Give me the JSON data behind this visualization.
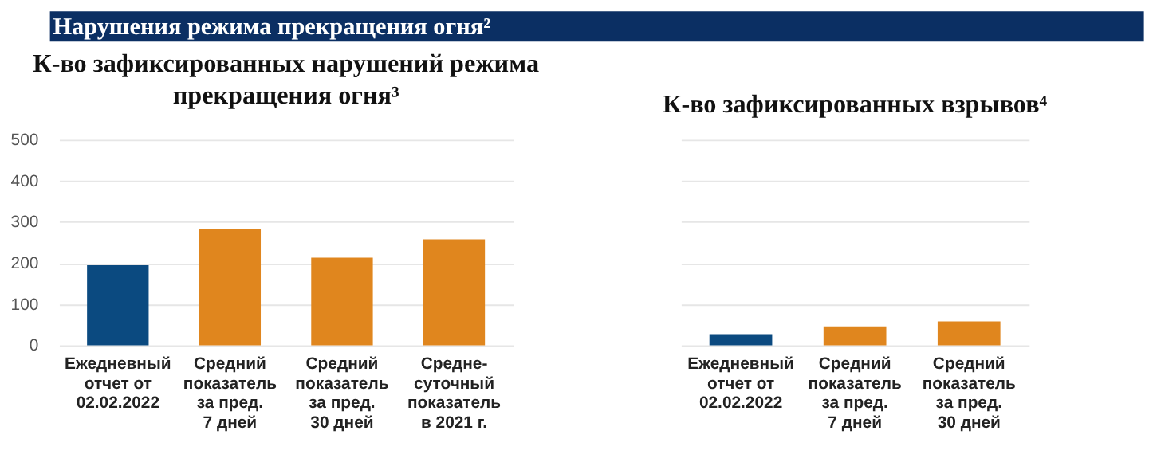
{
  "chart_data": [
    {
      "type": "bar",
      "title": "Нарушения режима прекращения огня²",
      "subtitle": "К-во зафиксированных нарушений режима\nпрекращения огня³",
      "categories": [
        "Ежедневный\nотчет от\n02.02.2022",
        "Средний\nпоказатель\nза пред.\n7 дней",
        "Средний\nпоказатель\nза пред.\n30 дней",
        "Средне-\nсуточный\nпоказатель\nв 2021 г."
      ],
      "values": [
        195,
        283,
        213,
        258
      ],
      "colors": [
        "#0b4a80",
        "#e0861e",
        "#e0861e",
        "#e0861e"
      ],
      "ylim": [
        0,
        500
      ],
      "yticks": [
        0,
        100,
        200,
        300,
        400,
        500
      ],
      "grid": "y"
    },
    {
      "type": "bar",
      "subtitle": "К-во зафиксированных взрывов⁴",
      "categories": [
        "Ежедневный\nотчет от\n02.02.2022",
        "Средний\nпоказатель\nза пред.\n7 дней",
        "Средний\nпоказатель\nза пред.\n30 дней"
      ],
      "values": [
        27,
        46,
        58
      ],
      "colors": [
        "#0b4a80",
        "#e0861e",
        "#e0861e"
      ],
      "ylim": [
        0,
        500
      ],
      "yticks": [
        0,
        100,
        200,
        300,
        400,
        500
      ],
      "grid": "y",
      "tick_labels": "x"
    }
  ]
}
